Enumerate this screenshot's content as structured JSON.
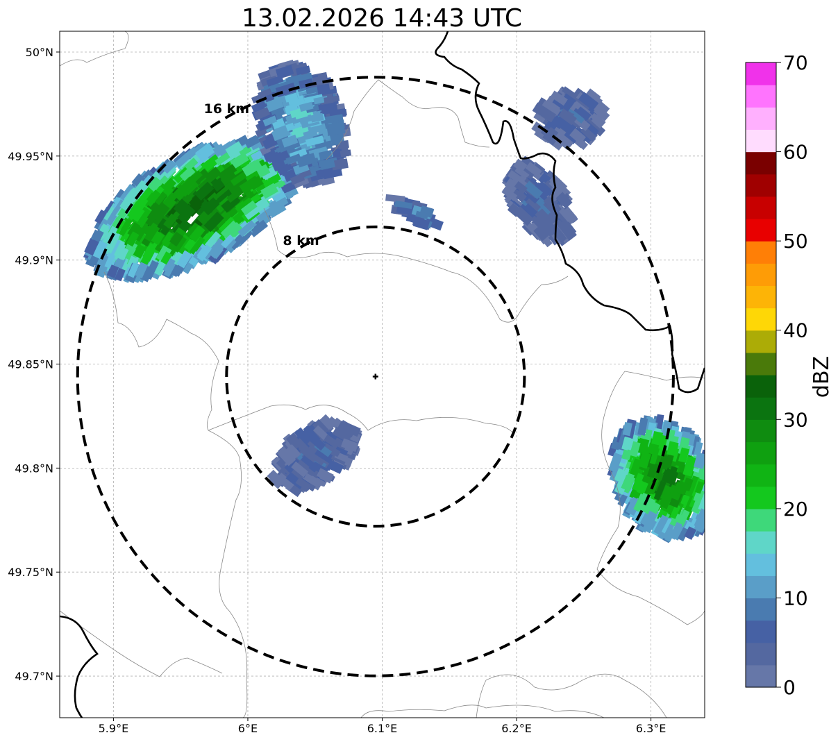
{
  "title": "13.02.2026 14:43 UTC",
  "map": {
    "lon_range": [
      5.86,
      6.34
    ],
    "lat_range": [
      49.68,
      50.01
    ],
    "x_ticks": [
      {
        "value": 5.9,
        "label": "5.9°E"
      },
      {
        "value": 6.0,
        "label": "6°E"
      },
      {
        "value": 6.1,
        "label": "6.1°E"
      },
      {
        "value": 6.2,
        "label": "6.2°E"
      },
      {
        "value": 6.3,
        "label": "6.3°E"
      }
    ],
    "y_ticks": [
      {
        "value": 49.7,
        "label": "49.7°N"
      },
      {
        "value": 49.75,
        "label": "49.75°N"
      },
      {
        "value": 49.8,
        "label": "49.8°N"
      },
      {
        "value": 49.85,
        "label": "49.85°N"
      },
      {
        "value": 49.9,
        "label": "49.9°N"
      },
      {
        "value": 49.95,
        "label": "49.95°N"
      },
      {
        "value": 50.0,
        "label": "50°N"
      }
    ],
    "radar_center": {
      "lon": 6.095,
      "lat": 49.844
    },
    "range_rings": [
      {
        "km": 8,
        "label": "8 km"
      },
      {
        "km": 16,
        "label": "16 km"
      }
    ],
    "grid": true
  },
  "colorbar": {
    "label": "dBZ",
    "ticks": [
      "0",
      "10",
      "20",
      "30",
      "40",
      "50",
      "60",
      "70"
    ],
    "min": 0,
    "max": 70,
    "colors": [
      "#6677a8",
      "#5468a0",
      "#4661a4",
      "#4a7bb0",
      "#5a9ec8",
      "#63bfde",
      "#5fd6c8",
      "#3ed87a",
      "#14c81e",
      "#10b414",
      "#0fa010",
      "#0f8c10",
      "#0b7410",
      "#0a620a",
      "#4a7a0a",
      "#acac06",
      "#fed706",
      "#fdb406",
      "#fe9c06",
      "#ff7f06",
      "#e80000",
      "#c80000",
      "#a00000",
      "#7a0000",
      "#ffdcfe",
      "#ffb0fe",
      "#ff74fe",
      "#f032ea"
    ]
  },
  "echoes": [
    {
      "name": "west-cell",
      "lon": 5.96,
      "lat": 49.925,
      "width_deg": 0.17,
      "height_deg": 0.05,
      "angle": -26,
      "core_dbz": 32
    },
    {
      "name": "north-cell",
      "lon": 6.04,
      "lat": 49.965,
      "width_deg": 0.06,
      "height_deg": 0.06,
      "angle": -20,
      "core_dbz": 14
    },
    {
      "name": "northeast-cell",
      "lon": 6.24,
      "lat": 49.968,
      "width_deg": 0.05,
      "height_deg": 0.025,
      "angle": -25,
      "core_dbz": 6
    },
    {
      "name": "east-cell",
      "lon": 6.217,
      "lat": 49.928,
      "width_deg": 0.04,
      "height_deg": 0.04,
      "angle": -30,
      "core_dbz": 6
    },
    {
      "name": "small-cell",
      "lon": 6.125,
      "lat": 49.923,
      "width_deg": 0.04,
      "height_deg": 0.008,
      "angle": 30,
      "core_dbz": 10
    },
    {
      "name": "south-cell",
      "lon": 6.05,
      "lat": 49.806,
      "width_deg": 0.07,
      "height_deg": 0.025,
      "angle": -35,
      "core_dbz": 6
    },
    {
      "name": "southeast-cell",
      "lon": 6.31,
      "lat": 49.795,
      "width_deg": 0.07,
      "height_deg": 0.06,
      "angle": -35,
      "core_dbz": 30
    }
  ]
}
